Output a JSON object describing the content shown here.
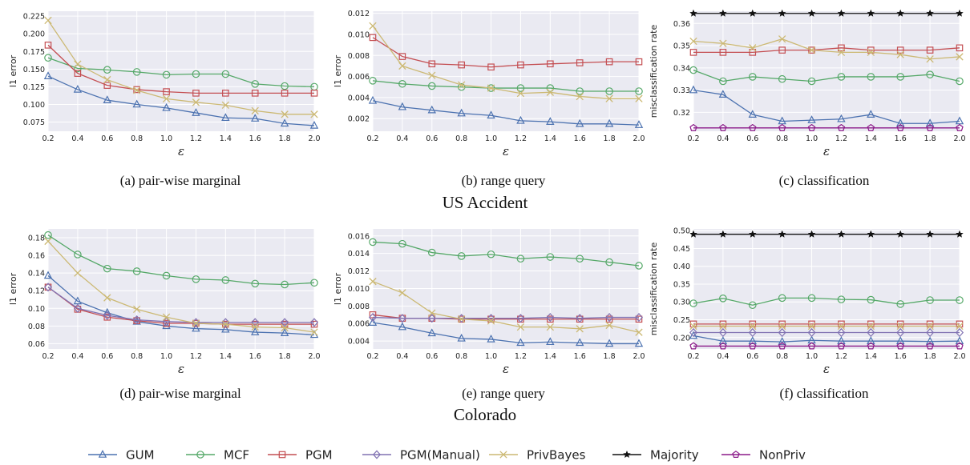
{
  "sections": [
    {
      "title": "US Accident"
    },
    {
      "title": "Colorado"
    }
  ],
  "captions": [
    "(a) pair-wise marginal",
    "(b) range query",
    "(c) classification",
    "(d) pair-wise marginal",
    "(e) range query",
    "(f) classification"
  ],
  "legend": [
    {
      "name": "GUM",
      "color": "#4c72b0",
      "marker": "triangle"
    },
    {
      "name": "MCF",
      "color": "#55a868",
      "marker": "circle"
    },
    {
      "name": "PGM",
      "color": "#c44e52",
      "marker": "square"
    },
    {
      "name": "PGM(Manual)",
      "color": "#8172b2",
      "marker": "diamond"
    },
    {
      "name": "PrivBayes",
      "color": "#ccb974",
      "marker": "x"
    },
    {
      "name": "Majority",
      "color": "#111111",
      "marker": "star"
    },
    {
      "name": "NonPriv",
      "color": "#8b1a89",
      "marker": "pentagon"
    }
  ],
  "chart_data": [
    {
      "type": "line",
      "xlabel": "ε",
      "ylabel": "l1 error",
      "x": [
        0.2,
        0.4,
        0.6,
        0.8,
        1.0,
        1.2,
        1.4,
        1.6,
        1.8,
        2.0
      ],
      "xticks": [
        "0.2",
        "0.4",
        "0.6",
        "0.8",
        "1.0",
        "1.2",
        "1.4",
        "1.6",
        "1.8",
        "2.0"
      ],
      "ylim": [
        0.062,
        0.232
      ],
      "yticks": [
        "0.075",
        "0.100",
        "0.125",
        "0.150",
        "0.175",
        "0.200",
        "0.225"
      ],
      "ytick_values": [
        0.075,
        0.1,
        0.125,
        0.15,
        0.175,
        0.2,
        0.225
      ],
      "series": [
        {
          "name": "GUM",
          "values": [
            0.14,
            0.121,
            0.106,
            0.1,
            0.095,
            0.088,
            0.081,
            0.08,
            0.073,
            0.07
          ]
        },
        {
          "name": "MCF",
          "values": [
            0.166,
            0.151,
            0.149,
            0.146,
            0.142,
            0.143,
            0.143,
            0.129,
            0.126,
            0.125
          ]
        },
        {
          "name": "PGM",
          "values": [
            0.184,
            0.144,
            0.127,
            0.121,
            0.118,
            0.116,
            0.116,
            0.116,
            0.116,
            0.116
          ]
        },
        {
          "name": "PrivBayes",
          "values": [
            0.219,
            0.157,
            0.135,
            0.12,
            0.108,
            0.103,
            0.099,
            0.091,
            0.086,
            0.086
          ]
        }
      ]
    },
    {
      "type": "line",
      "xlabel": "ε",
      "ylabel": "l1 error",
      "x": [
        0.2,
        0.4,
        0.6,
        0.8,
        1.0,
        1.2,
        1.4,
        1.6,
        1.8,
        2.0
      ],
      "xticks": [
        "0.2",
        "0.4",
        "0.6",
        "0.8",
        "1.0",
        "1.2",
        "1.4",
        "1.6",
        "1.8",
        "2.0"
      ],
      "ylim": [
        0.0008,
        0.0122
      ],
      "yticks": [
        "0.002",
        "0.004",
        "0.006",
        "0.008",
        "0.010",
        "0.012"
      ],
      "ytick_values": [
        0.002,
        0.004,
        0.006,
        0.008,
        0.01,
        0.012
      ],
      "series": [
        {
          "name": "GUM",
          "values": [
            0.0037,
            0.0031,
            0.0028,
            0.0025,
            0.0023,
            0.0018,
            0.0017,
            0.0015,
            0.0015,
            0.0014
          ]
        },
        {
          "name": "MCF",
          "values": [
            0.0056,
            0.0053,
            0.0051,
            0.005,
            0.0049,
            0.0049,
            0.0049,
            0.0046,
            0.0046,
            0.0046
          ]
        },
        {
          "name": "PGM",
          "values": [
            0.0097,
            0.0079,
            0.0072,
            0.0071,
            0.0069,
            0.0071,
            0.0072,
            0.0073,
            0.0074,
            0.0074
          ]
        },
        {
          "name": "PrivBayes",
          "values": [
            0.0108,
            0.007,
            0.0061,
            0.0052,
            0.0049,
            0.0044,
            0.0045,
            0.0041,
            0.0039,
            0.0039
          ]
        }
      ]
    },
    {
      "type": "line",
      "xlabel": "ε",
      "ylabel": "misclassification rate",
      "x": [
        0.2,
        0.4,
        0.6,
        0.8,
        1.0,
        1.2,
        1.4,
        1.6,
        1.8,
        2.0
      ],
      "xticks": [
        "0.2",
        "0.4",
        "0.6",
        "0.8",
        "1.0",
        "1.2",
        "1.4",
        "1.6",
        "1.8",
        "2.0"
      ],
      "ylim": [
        0.3115,
        0.3655
      ],
      "yticks": [
        "0.32",
        "0.33",
        "0.34",
        "0.35",
        "0.36"
      ],
      "ytick_values": [
        0.32,
        0.33,
        0.34,
        0.35,
        0.36
      ],
      "series": [
        {
          "name": "GUM",
          "values": [
            0.33,
            0.328,
            0.319,
            0.316,
            0.3165,
            0.317,
            0.319,
            0.315,
            0.315,
            0.316
          ]
        },
        {
          "name": "MCF",
          "values": [
            0.339,
            0.334,
            0.336,
            0.335,
            0.334,
            0.336,
            0.336,
            0.336,
            0.337,
            0.334
          ]
        },
        {
          "name": "PGM",
          "values": [
            0.347,
            0.347,
            0.347,
            0.348,
            0.348,
            0.349,
            0.348,
            0.348,
            0.348,
            0.349
          ]
        },
        {
          "name": "PrivBayes",
          "values": [
            0.352,
            0.351,
            0.349,
            0.353,
            0.348,
            0.347,
            0.347,
            0.346,
            0.344,
            0.345
          ]
        },
        {
          "name": "Majority",
          "values": [
            0.3645,
            0.3645,
            0.3645,
            0.3645,
            0.3645,
            0.3645,
            0.3645,
            0.3645,
            0.3645,
            0.3645
          ]
        },
        {
          "name": "NonPriv",
          "values": [
            0.313,
            0.313,
            0.313,
            0.313,
            0.313,
            0.313,
            0.313,
            0.313,
            0.313,
            0.313
          ]
        }
      ]
    },
    {
      "type": "line",
      "xlabel": "ε",
      "ylabel": "l1 error",
      "x": [
        0.2,
        0.4,
        0.6,
        0.8,
        1.0,
        1.2,
        1.4,
        1.6,
        1.8,
        2.0
      ],
      "xticks": [
        "0.2",
        "0.4",
        "0.6",
        "0.8",
        "1.0",
        "1.2",
        "1.4",
        "1.6",
        "1.8",
        "2.0"
      ],
      "ylim": [
        0.054,
        0.19
      ],
      "yticks": [
        "0.06",
        "0.08",
        "0.10",
        "0.12",
        "0.14",
        "0.16",
        "0.18"
      ],
      "ytick_values": [
        0.06,
        0.08,
        0.1,
        0.12,
        0.14,
        0.16,
        0.18
      ],
      "series": [
        {
          "name": "GUM",
          "values": [
            0.137,
            0.108,
            0.095,
            0.085,
            0.08,
            0.077,
            0.076,
            0.073,
            0.072,
            0.07
          ]
        },
        {
          "name": "MCF",
          "values": [
            0.183,
            0.161,
            0.145,
            0.142,
            0.137,
            0.133,
            0.132,
            0.128,
            0.127,
            0.129
          ]
        },
        {
          "name": "PGM",
          "values": [
            0.124,
            0.099,
            0.09,
            0.086,
            0.083,
            0.083,
            0.082,
            0.082,
            0.082,
            0.082
          ]
        },
        {
          "name": "PGM(Manual)",
          "values": [
            0.124,
            0.1,
            0.092,
            0.087,
            0.085,
            0.084,
            0.084,
            0.084,
            0.084,
            0.084
          ]
        },
        {
          "name": "PrivBayes",
          "values": [
            0.176,
            0.14,
            0.112,
            0.099,
            0.09,
            0.083,
            0.082,
            0.079,
            0.078,
            0.073
          ]
        }
      ]
    },
    {
      "type": "line",
      "xlabel": "ε",
      "ylabel": "l1 error",
      "x": [
        0.2,
        0.4,
        0.6,
        0.8,
        1.0,
        1.2,
        1.4,
        1.6,
        1.8,
        2.0
      ],
      "xticks": [
        "0.2",
        "0.4",
        "0.6",
        "0.8",
        "1.0",
        "1.2",
        "1.4",
        "1.6",
        "1.8",
        "2.0"
      ],
      "ylim": [
        0.0031,
        0.0168
      ],
      "yticks": [
        "0.004",
        "0.006",
        "0.008",
        "0.010",
        "0.012",
        "0.014",
        "0.016"
      ],
      "ytick_values": [
        0.004,
        0.006,
        0.008,
        0.01,
        0.012,
        0.014,
        0.016
      ],
      "series": [
        {
          "name": "GUM",
          "values": [
            0.0061,
            0.0056,
            0.0049,
            0.0043,
            0.0042,
            0.0038,
            0.0039,
            0.0038,
            0.0037,
            0.0037
          ]
        },
        {
          "name": "MCF",
          "values": [
            0.0153,
            0.0151,
            0.0141,
            0.0137,
            0.0139,
            0.0134,
            0.0136,
            0.0134,
            0.013,
            0.0126
          ]
        },
        {
          "name": "PGM",
          "values": [
            0.007,
            0.0066,
            0.0066,
            0.0065,
            0.0065,
            0.0065,
            0.0065,
            0.0065,
            0.0065,
            0.0065
          ]
        },
        {
          "name": "PGM(Manual)",
          "values": [
            0.0067,
            0.0066,
            0.0066,
            0.0066,
            0.0066,
            0.0066,
            0.0067,
            0.0066,
            0.0067,
            0.0067
          ]
        },
        {
          "name": "PrivBayes",
          "values": [
            0.0108,
            0.0095,
            0.0072,
            0.0065,
            0.0063,
            0.0056,
            0.0056,
            0.0054,
            0.0058,
            0.005
          ]
        }
      ]
    },
    {
      "type": "line",
      "xlabel": "ε",
      "ylabel": "misclassification rate",
      "x": [
        0.2,
        0.4,
        0.6,
        0.8,
        1.0,
        1.2,
        1.4,
        1.6,
        1.8,
        2.0
      ],
      "xticks": [
        "0.2",
        "0.4",
        "0.6",
        "0.8",
        "1.0",
        "1.2",
        "1.4",
        "1.6",
        "1.8",
        "2.0"
      ],
      "ylim": [
        0.168,
        0.505
      ],
      "yticks": [
        "0.20",
        "0.25",
        "0.30",
        "0.35",
        "0.40",
        "0.45",
        "0.50"
      ],
      "ytick_values": [
        0.2,
        0.25,
        0.3,
        0.35,
        0.4,
        0.45,
        0.5
      ],
      "series": [
        {
          "name": "GUM",
          "values": [
            0.205,
            0.19,
            0.19,
            0.188,
            0.192,
            0.19,
            0.19,
            0.19,
            0.189,
            0.19
          ]
        },
        {
          "name": "MCF",
          "values": [
            0.296,
            0.31,
            0.291,
            0.311,
            0.311,
            0.307,
            0.306,
            0.294,
            0.305,
            0.305
          ]
        },
        {
          "name": "PGM",
          "values": [
            0.238,
            0.238,
            0.238,
            0.238,
            0.238,
            0.238,
            0.238,
            0.238,
            0.238,
            0.238
          ]
        },
        {
          "name": "PGM(Manual)",
          "values": [
            0.214,
            0.214,
            0.214,
            0.214,
            0.214,
            0.214,
            0.214,
            0.214,
            0.214,
            0.214
          ]
        },
        {
          "name": "PrivBayes",
          "values": [
            0.232,
            0.232,
            0.232,
            0.232,
            0.232,
            0.232,
            0.232,
            0.232,
            0.232,
            0.232
          ]
        },
        {
          "name": "Majority",
          "values": [
            0.49,
            0.49,
            0.49,
            0.49,
            0.49,
            0.49,
            0.49,
            0.49,
            0.49,
            0.49
          ]
        },
        {
          "name": "NonPriv",
          "values": [
            0.176,
            0.176,
            0.176,
            0.176,
            0.176,
            0.176,
            0.176,
            0.176,
            0.176,
            0.176
          ]
        }
      ]
    }
  ]
}
